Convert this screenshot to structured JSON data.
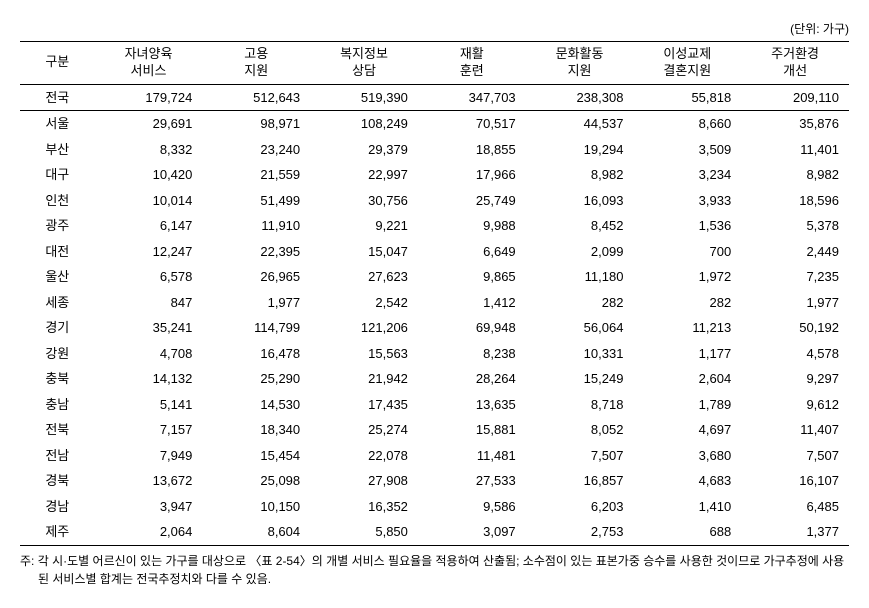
{
  "unit_label": "(단위: 가구)",
  "columns": [
    {
      "line1": "구분"
    },
    {
      "line1": "자녀양육",
      "line2": "서비스"
    },
    {
      "line1": "고용",
      "line2": "지원"
    },
    {
      "line1": "복지정보",
      "line2": "상담"
    },
    {
      "line1": "재활",
      "line2": "훈련"
    },
    {
      "line1": "문화활동",
      "line2": "지원"
    },
    {
      "line1": "이성교제",
      "line2": "결혼지원"
    },
    {
      "line1": "주거환경",
      "line2": "개선"
    }
  ],
  "total_row": {
    "label": "전국",
    "values": [
      "179,724",
      "512,643",
      "519,390",
      "347,703",
      "238,308",
      "55,818",
      "209,110"
    ]
  },
  "rows": [
    {
      "label": "서울",
      "values": [
        "29,691",
        "98,971",
        "108,249",
        "70,517",
        "44,537",
        "8,660",
        "35,876"
      ]
    },
    {
      "label": "부산",
      "values": [
        "8,332",
        "23,240",
        "29,379",
        "18,855",
        "19,294",
        "3,509",
        "11,401"
      ]
    },
    {
      "label": "대구",
      "values": [
        "10,420",
        "21,559",
        "22,997",
        "17,966",
        "8,982",
        "3,234",
        "8,982"
      ]
    },
    {
      "label": "인천",
      "values": [
        "10,014",
        "51,499",
        "30,756",
        "25,749",
        "16,093",
        "3,933",
        "18,596"
      ]
    },
    {
      "label": "광주",
      "values": [
        "6,147",
        "11,910",
        "9,221",
        "9,988",
        "8,452",
        "1,536",
        "5,378"
      ]
    },
    {
      "label": "대전",
      "values": [
        "12,247",
        "22,395",
        "15,047",
        "6,649",
        "2,099",
        "700",
        "2,449"
      ]
    },
    {
      "label": "울산",
      "values": [
        "6,578",
        "26,965",
        "27,623",
        "9,865",
        "11,180",
        "1,972",
        "7,235"
      ]
    },
    {
      "label": "세종",
      "values": [
        "847",
        "1,977",
        "2,542",
        "1,412",
        "282",
        "282",
        "1,977"
      ]
    },
    {
      "label": "경기",
      "values": [
        "35,241",
        "114,799",
        "121,206",
        "69,948",
        "56,064",
        "11,213",
        "50,192"
      ]
    },
    {
      "label": "강원",
      "values": [
        "4,708",
        "16,478",
        "15,563",
        "8,238",
        "10,331",
        "1,177",
        "4,578"
      ]
    },
    {
      "label": "충북",
      "values": [
        "14,132",
        "25,290",
        "21,942",
        "28,264",
        "15,249",
        "2,604",
        "9,297"
      ]
    },
    {
      "label": "충남",
      "values": [
        "5,141",
        "14,530",
        "17,435",
        "13,635",
        "8,718",
        "1,789",
        "9,612"
      ]
    },
    {
      "label": "전북",
      "values": [
        "7,157",
        "18,340",
        "25,274",
        "15,881",
        "8,052",
        "4,697",
        "11,407"
      ]
    },
    {
      "label": "전남",
      "values": [
        "7,949",
        "15,454",
        "22,078",
        "11,481",
        "7,507",
        "3,680",
        "7,507"
      ]
    },
    {
      "label": "경북",
      "values": [
        "13,672",
        "25,098",
        "27,908",
        "27,533",
        "16,857",
        "4,683",
        "16,107"
      ]
    },
    {
      "label": "경남",
      "values": [
        "3,947",
        "10,150",
        "16,352",
        "9,586",
        "6,203",
        "1,410",
        "6,485"
      ]
    },
    {
      "label": "제주",
      "values": [
        "2,064",
        "8,604",
        "5,850",
        "3,097",
        "2,753",
        "688",
        "1,377"
      ]
    }
  ],
  "footnote": "주: 각 시·도별 어르신이 있는 가구를 대상으로 〈표 2-54〉의 개별 서비스 필요율을 적용하여 산출됨; 소수점이 있는 표본가중 승수를 사용한 것이므로 가구추정에 사용된 서비스별 합계는 전국추정치와 다를 수 있음."
}
